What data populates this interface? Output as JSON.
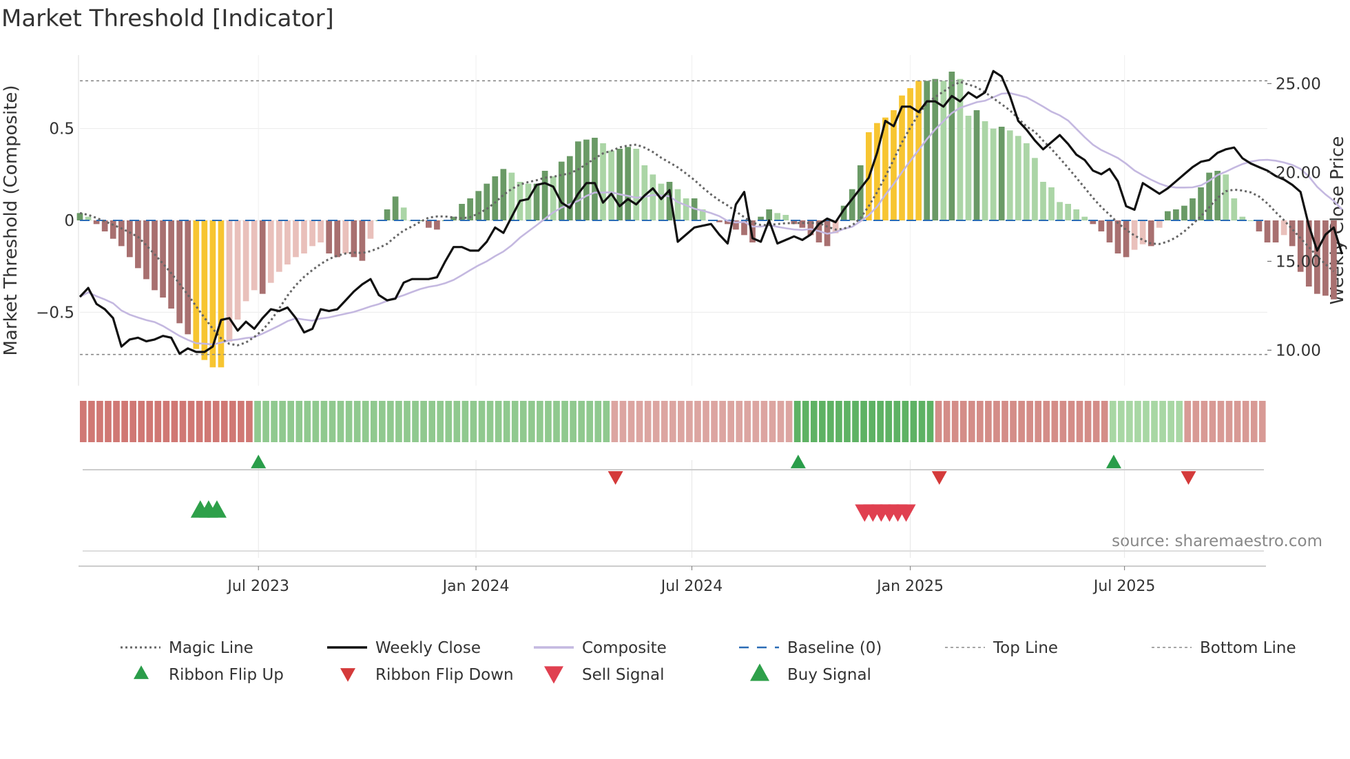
{
  "chart_data": {
    "type": "bar",
    "title": "Market Threshold [Indicator]",
    "ylabel_left": "Market Threshold (Composite)",
    "ylabel_right": "Weekly Close Price",
    "source": "source: sharemaestro.com",
    "yticks_left": [
      "0.5",
      "0",
      "−0.5"
    ],
    "yticks_left_values": [
      0.5,
      0,
      -0.5
    ],
    "yticks_right": [
      "25.00",
      "20.00",
      "15.00",
      "10.00"
    ],
    "yticks_right_values": [
      25,
      20,
      15,
      10
    ],
    "ylim_left": [
      -0.9,
      0.9
    ],
    "ylim_right": [
      8.0,
      26.6
    ],
    "top_line": 0.76,
    "bottom_line": -0.73,
    "xticks": [
      {
        "label": "Jul 2023",
        "week": 48.5
      },
      {
        "label": "Jan 2024",
        "week": 74.7
      },
      {
        "label": "Jul 2024",
        "week": 100.7
      },
      {
        "label": "Jan 2025",
        "week": 127.0
      },
      {
        "label": "Jul 2025",
        "week": 152.8
      }
    ],
    "x_range_weeks": [
      27,
      170
    ],
    "composite_bars": [
      0.04,
      0.02,
      -0.02,
      -0.06,
      -0.1,
      -0.14,
      -0.2,
      -0.26,
      -0.32,
      -0.38,
      -0.42,
      -0.48,
      -0.56,
      -0.62,
      -0.7,
      -0.76,
      -0.8,
      -0.8,
      -0.66,
      -0.54,
      -0.44,
      -0.38,
      -0.4,
      -0.34,
      -0.28,
      -0.24,
      -0.2,
      -0.18,
      -0.14,
      -0.12,
      -0.18,
      -0.2,
      -0.18,
      -0.2,
      -0.22,
      -0.1,
      0,
      0.06,
      0.13,
      0.07,
      0,
      0,
      -0.04,
      -0.05,
      0,
      0.02,
      0.09,
      0.12,
      0.16,
      0.2,
      0.24,
      0.28,
      0.26,
      0.21,
      0.2,
      0.2,
      0.27,
      0.24,
      0.32,
      0.35,
      0.43,
      0.44,
      0.45,
      0.42,
      0.38,
      0.39,
      0.4,
      0.39,
      0.3,
      0.25,
      0.2,
      0.21,
      0.17,
      0.12,
      0.12,
      0.06,
      0,
      -0.01,
      -0.02,
      -0.05,
      -0.08,
      -0.12,
      0.02,
      0.06,
      0.04,
      0.03,
      -0.02,
      -0.04,
      -0.08,
      -0.12,
      -0.14,
      -0.07,
      0.08,
      0.17,
      0.3,
      0.48,
      0.53,
      0.56,
      0.6,
      0.68,
      0.72,
      0.76,
      0.76,
      0.77,
      0.76,
      0.81,
      0.77,
      0.57,
      0.6,
      0.54,
      0.5,
      0.51,
      0.49,
      0.46,
      0.42,
      0.34,
      0.21,
      0.18,
      0.1,
      0.09,
      0.06,
      0.02,
      -0.02,
      -0.06,
      -0.12,
      -0.18,
      -0.2,
      -0.16,
      -0.13,
      -0.14,
      -0.04,
      0.05,
      0.06,
      0.08,
      0.12,
      0.18,
      0.26,
      0.27,
      0.25,
      0.12,
      0.02,
      0,
      -0.06,
      -0.12,
      -0.12,
      -0.08,
      -0.14,
      -0.28,
      -0.36,
      -0.4,
      -0.41,
      -0.43
    ],
    "bar_colors": {
      "strong_positive": "#6a9a66",
      "weak_positive": "#abd5a6",
      "strong_negative": "#a87070",
      "weak_negative": "#e9c0bb",
      "extreme": "#f7c531"
    },
    "extreme_bar_indices": [
      14,
      15,
      16,
      17,
      95,
      96,
      97,
      98,
      99,
      100,
      101
    ],
    "weekly_close": [
      13.0,
      13.5,
      12.6,
      12.3,
      11.8,
      10.2,
      10.6,
      10.7,
      10.5,
      10.6,
      10.8,
      10.7,
      9.8,
      10.1,
      9.9,
      9.9,
      10.2,
      11.7,
      11.8,
      11.1,
      11.6,
      11.2,
      11.8,
      12.3,
      12.2,
      12.4,
      11.8,
      11.0,
      11.2,
      12.3,
      12.2,
      12.3,
      12.8,
      13.3,
      13.7,
      14.0,
      13.1,
      12.8,
      12.9,
      13.8,
      14.0,
      14.0,
      14.0,
      14.1,
      15.0,
      15.8,
      15.8,
      15.6,
      15.6,
      16.1,
      16.9,
      16.6,
      17.5,
      18.4,
      18.5,
      19.3,
      19.4,
      19.2,
      18.3,
      18.0,
      18.8,
      19.4,
      19.4,
      18.3,
      18.8,
      18.1,
      18.5,
      18.2,
      18.7,
      19.1,
      18.5,
      19.0,
      16.1,
      16.5,
      16.9,
      17.0,
      17.1,
      16.5,
      16.0,
      18.2,
      18.9,
      16.3,
      16.1,
      17.3,
      16.0,
      16.2,
      16.4,
      16.2,
      16.5,
      17.1,
      17.4,
      17.2,
      17.9,
      18.5,
      19.1,
      19.7,
      21.1,
      22.9,
      22.6,
      23.7,
      23.7,
      23.4,
      24.0,
      24.0,
      23.7,
      24.3,
      24.0,
      24.5,
      24.2,
      24.5,
      25.7,
      25.4,
      24.3,
      22.9,
      22.4,
      21.8,
      21.3,
      21.7,
      22.1,
      21.6,
      21.0,
      20.7,
      20.1,
      19.9,
      20.2,
      19.5,
      18.1,
      17.9,
      19.4,
      19.1,
      18.8,
      19.1,
      19.5,
      19.9,
      20.3,
      20.6,
      20.7,
      21.1,
      21.3,
      21.4,
      20.8,
      20.5,
      20.3,
      20.1,
      19.8,
      19.6,
      19.3,
      18.9,
      17.0,
      15.6,
      16.5,
      16.9,
      15.4
    ],
    "buy_signals": [
      14,
      15,
      16
    ],
    "sell_signals": [
      94,
      95,
      96,
      97,
      98,
      99
    ],
    "ribbon_flip_up": [
      21,
      86,
      124
    ],
    "ribbon_flip_down": [
      64,
      103,
      133
    ],
    "ribbon_colors": [
      {
        "from": 0,
        "to": 21,
        "color": "#d07874"
      },
      {
        "from": 21,
        "to": 64,
        "color": "#90c98f"
      },
      {
        "from": 64,
        "to": 86,
        "color": "#dca5a1"
      },
      {
        "from": 86,
        "to": 103,
        "color": "#5eb264"
      },
      {
        "from": 103,
        "to": 124,
        "color": "#d48d88"
      },
      {
        "from": 124,
        "to": 133,
        "color": "#a8d7a4"
      },
      {
        "from": 133,
        "to": 143,
        "color": "#d89a95"
      }
    ],
    "legend": [
      {
        "label": "Magic Line",
        "kind": "dotted",
        "color": "#666666"
      },
      {
        "label": "Weekly Close",
        "kind": "solid",
        "color": "#111111"
      },
      {
        "label": "Composite",
        "kind": "solid",
        "color": "#c4b8e0"
      },
      {
        "label": "Baseline (0)",
        "kind": "dashed",
        "color": "#2a6cb5"
      },
      {
        "label": "Top Line",
        "kind": "dashed-thin",
        "color": "#888888"
      },
      {
        "label": "Bottom Line",
        "kind": "dashed-thin",
        "color": "#888888"
      },
      {
        "label": "Ribbon Flip Up",
        "kind": "tri-up",
        "color": "#2a9d4a"
      },
      {
        "label": "Ribbon Flip Down",
        "kind": "tri-down",
        "color": "#d43a3a"
      },
      {
        "label": "Sell Signal",
        "kind": "tri-down-big",
        "color": "#e04050"
      },
      {
        "label": "Buy Signal",
        "kind": "tri-up-big",
        "color": "#2ea04a"
      }
    ]
  }
}
